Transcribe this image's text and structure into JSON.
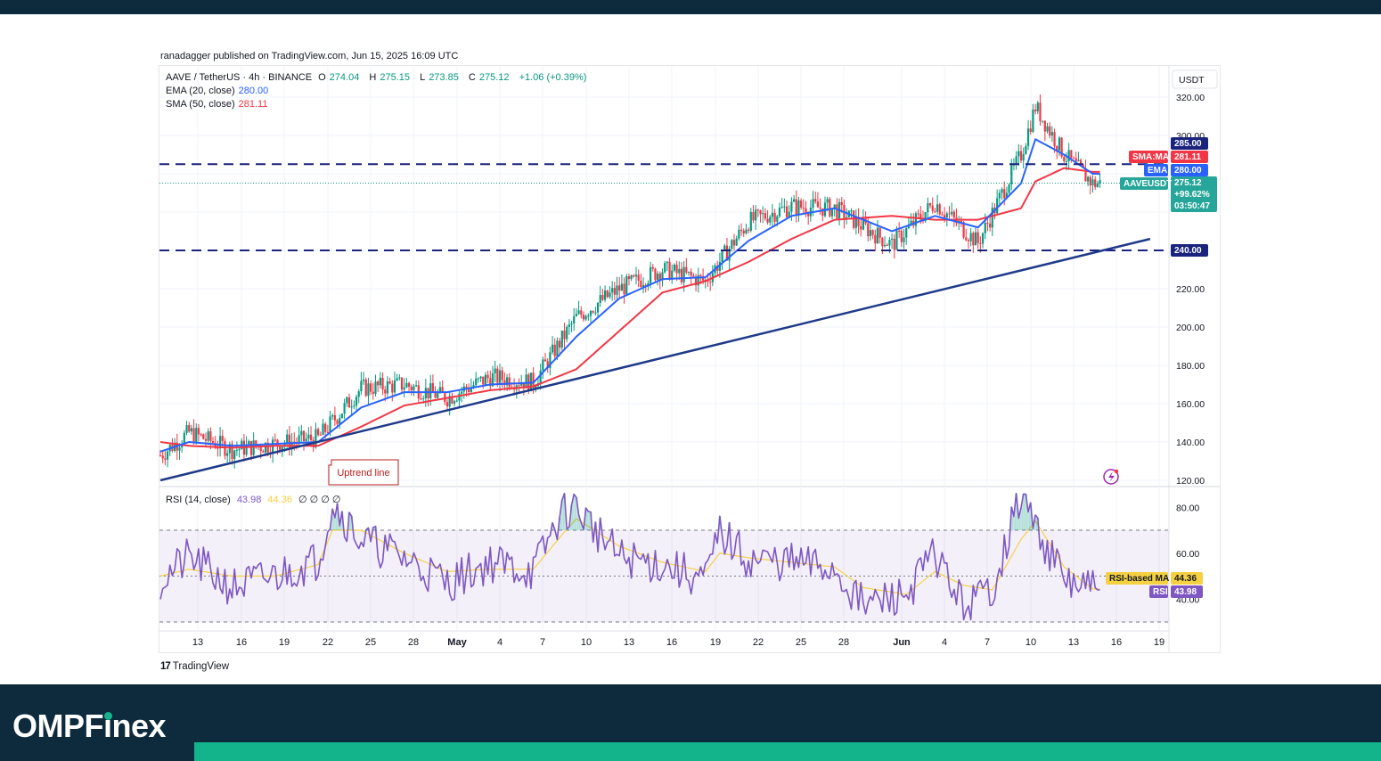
{
  "header": {
    "published": "ranadagger published on TradingView.com, Jun 15, 2025 16:09 UTC"
  },
  "legend": {
    "symbol": "AAVE / TetherUS · 4h · BINANCE",
    "open_label": "O",
    "open": "274.04",
    "high_label": "H",
    "high": "275.15",
    "low_label": "L",
    "low": "273.85",
    "close_label": "C",
    "close": "275.12",
    "change": "+1.06 (+0.39%)",
    "ema_label": "EMA (20, close)",
    "ema_value": "280.00",
    "sma_label": "SMA (50, close)",
    "sma_value": "281.11",
    "rsi_label": "RSI (14, close)",
    "rsi_value": "43.98",
    "rsi_ma_value": "44.36",
    "rsi_extras": "∅ ∅ ∅ ∅"
  },
  "price_axis": {
    "currency": "USDT",
    "ticks": [
      "320.00",
      "300.00",
      "220.00",
      "200.00",
      "180.00",
      "160.00",
      "140.00",
      "120.00"
    ]
  },
  "rsi_axis": {
    "ticks": [
      "80.00",
      "60.00",
      "40.00"
    ]
  },
  "x_axis": {
    "ticks": [
      "13",
      "16",
      "19",
      "22",
      "25",
      "28",
      "May",
      "4",
      "7",
      "10",
      "13",
      "16",
      "19",
      "22",
      "25",
      "28",
      "Jun",
      "4",
      "7",
      "10",
      "13",
      "16",
      "19"
    ]
  },
  "badges": {
    "level_285": "285.00",
    "sma_tag": "SMA:MA",
    "sma_val": "281.11",
    "ema_tag": "EMA",
    "ema_val": "280.00",
    "symbol_tag": "AAVEUSDT",
    "last_price": "275.12",
    "last_change": "+99.62%",
    "countdown": "03:50:47",
    "level_240": "240.00",
    "rsi_ma_tag": "RSI-based MA",
    "rsi_ma_val": "44.36",
    "rsi_tag": "RSI",
    "rsi_val": "43.98"
  },
  "annotations": {
    "uptrend": "Uptrend line"
  },
  "footer": {
    "tradingview": "TradingView",
    "brand_prefix": "OMPF",
    "brand_i": "ı",
    "brand_suffix": "nex"
  },
  "colors": {
    "up": "#089981",
    "down": "#f23645",
    "ema": "#2962ff",
    "sma": "#f23645",
    "rsi": "#7e57c2",
    "rsi_ma": "#f5d142",
    "levels": "#1a237e",
    "trend": "#1e3a8a",
    "brand_bg": "#0e2a3d",
    "brand_accent": "#13b48c"
  },
  "chart_data": [
    {
      "type": "line",
      "title": "AAVE / TetherUS · 4h · BINANCE",
      "x": [
        "Apr 11",
        "Apr 13",
        "Apr 16",
        "Apr 19",
        "Apr 22",
        "Apr 25",
        "Apr 28",
        "May 1",
        "May 4",
        "May 7",
        "May 10",
        "May 13",
        "May 16",
        "May 19",
        "May 22",
        "May 25",
        "May 28",
        "Jun 1",
        "Jun 4",
        "Jun 7",
        "Jun 10",
        "Jun 11",
        "Jun 13",
        "Jun 15"
      ],
      "series": [
        {
          "name": "AAVEUSDT",
          "values": [
            133,
            145,
            136,
            139,
            142,
            168,
            170,
            163,
            174,
            171,
            205,
            220,
            230,
            224,
            255,
            263,
            262,
            243,
            265,
            244,
            290,
            315,
            290,
            275
          ]
        },
        {
          "name": "EMA",
          "values": [
            135,
            140,
            138,
            139,
            140,
            158,
            166,
            166,
            170,
            171,
            195,
            215,
            225,
            226,
            245,
            258,
            262,
            250,
            258,
            252,
            275,
            298,
            290,
            280
          ]
        },
        {
          "name": "SMA",
          "values": [
            140,
            138,
            137,
            138,
            138,
            148,
            159,
            163,
            167,
            169,
            178,
            198,
            218,
            224,
            234,
            246,
            256,
            258,
            256,
            256,
            262,
            276,
            283,
            281
          ]
        }
      ],
      "horizontal_levels": [
        285,
        240
      ],
      "trendline": {
        "from": {
          "x": "Apr 11",
          "y": 120
        },
        "to": {
          "x": "Jun 19",
          "y": 246
        }
      },
      "ylim": [
        120,
        320
      ],
      "last": 275.12
    },
    {
      "type": "line",
      "title": "RSI (14, close)",
      "x": [
        "Apr 11",
        "Apr 13",
        "Apr 16",
        "Apr 19",
        "Apr 22",
        "Apr 23",
        "Apr 25",
        "Apr 28",
        "May 1",
        "May 4",
        "May 7",
        "May 9",
        "May 10",
        "May 13",
        "May 16",
        "May 19",
        "May 20",
        "May 22",
        "May 25",
        "May 28",
        "May 30",
        "Jun 2",
        "Jun 4",
        "Jun 6",
        "Jun 8",
        "Jun 10",
        "Jun 11",
        "Jun 13",
        "Jun 15"
      ],
      "series": [
        {
          "name": "RSI",
          "values": [
            48,
            58,
            45,
            50,
            57,
            82,
            66,
            58,
            47,
            56,
            52,
            78,
            80,
            58,
            55,
            48,
            69,
            57,
            56,
            53,
            37,
            42,
            60,
            36,
            45,
            85,
            72,
            48,
            43.98
          ]
        },
        {
          "name": "RSI-based MA",
          "values": [
            50,
            53,
            50,
            50,
            55,
            70,
            70,
            60,
            52,
            53,
            53,
            68,
            75,
            63,
            56,
            52,
            60,
            58,
            56,
            54,
            45,
            42,
            52,
            46,
            44,
            66,
            74,
            54,
            44.36
          ]
        }
      ],
      "bands": [
        70,
        50,
        30
      ],
      "ylim": [
        25,
        88
      ]
    }
  ]
}
